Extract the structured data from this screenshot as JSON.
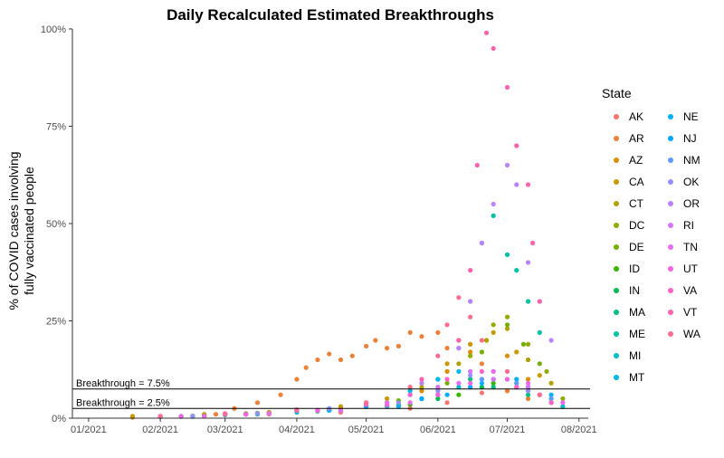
{
  "chart_data": {
    "type": "scatter",
    "title": "Daily Recalculated Estimated Breakthroughs",
    "ylabel_lines": [
      "% of COVID cases involving",
      "fully vaccinated people"
    ],
    "xlabel": "",
    "x_ticks": [
      "01/2021",
      "02/2021",
      "03/2021",
      "04/2021",
      "05/2021",
      "06/2021",
      "07/2021",
      "08/2021"
    ],
    "y_ticks": [
      "0%",
      "25%",
      "50%",
      "75%",
      "100%"
    ],
    "x_range": [
      "2020-12-25",
      "2021-08-05"
    ],
    "ylim": [
      0,
      100
    ],
    "grid": false,
    "legend": {
      "title": "State",
      "position": "right"
    },
    "reference_lines": [
      {
        "label": "Breakthrough = 7.5%",
        "value": 7.5
      },
      {
        "label": "Breakthrough = 2.5%",
        "value": 2.5
      }
    ],
    "series": [
      {
        "name": "AK",
        "color": "#F8766D",
        "points": [
          [
            "2021-01-20",
            0.2
          ],
          [
            "2021-02-20",
            0.5
          ],
          [
            "2021-03-20",
            1.0
          ],
          [
            "2021-04-20",
            1.5
          ],
          [
            "2021-05-20",
            2.5
          ],
          [
            "2021-06-05",
            4.0
          ],
          [
            "2021-06-20",
            6.5
          ],
          [
            "2021-07-05",
            8.0
          ],
          [
            "2021-07-20",
            4.0
          ]
        ]
      },
      {
        "name": "AR",
        "color": "#EC8239",
        "points": [
          [
            "2021-02-25",
            1.0
          ],
          [
            "2021-03-05",
            2.5
          ],
          [
            "2021-03-15",
            4.0
          ],
          [
            "2021-03-25",
            6.0
          ],
          [
            "2021-04-01",
            10.0
          ],
          [
            "2021-04-05",
            13.0
          ],
          [
            "2021-04-10",
            15.0
          ],
          [
            "2021-04-15",
            16.5
          ],
          [
            "2021-04-20",
            15.0
          ],
          [
            "2021-04-25",
            16.0
          ],
          [
            "2021-05-01",
            18.5
          ],
          [
            "2021-05-05",
            20.0
          ],
          [
            "2021-05-10",
            18.0
          ],
          [
            "2021-05-15",
            18.5
          ],
          [
            "2021-05-20",
            22.0
          ],
          [
            "2021-05-25",
            21.0
          ],
          [
            "2021-06-01",
            22.0
          ],
          [
            "2021-06-05",
            18.0
          ],
          [
            "2021-06-10",
            20.0
          ],
          [
            "2021-06-15",
            19.0
          ],
          [
            "2021-06-20",
            14.0
          ],
          [
            "2021-06-25",
            10.0
          ],
          [
            "2021-07-01",
            7.0
          ],
          [
            "2021-07-10",
            5.0
          ]
        ]
      },
      {
        "name": "AZ",
        "color": "#DB8E00",
        "points": [
          [
            "2021-01-20",
            0.3
          ],
          [
            "2021-02-20",
            0.8
          ],
          [
            "2021-03-20",
            1.5
          ],
          [
            "2021-04-20",
            2.5
          ],
          [
            "2021-05-10",
            4.0
          ],
          [
            "2021-05-25",
            7.0
          ],
          [
            "2021-06-05",
            12.0
          ],
          [
            "2021-06-15",
            17.0
          ],
          [
            "2021-06-22",
            20.0
          ],
          [
            "2021-07-01",
            16.0
          ],
          [
            "2021-07-10",
            10.0
          ]
        ]
      },
      {
        "name": "CA",
        "color": "#C79800",
        "points": [
          [
            "2021-01-20",
            0.5
          ],
          [
            "2021-02-20",
            1.0
          ],
          [
            "2021-03-20",
            1.5
          ],
          [
            "2021-04-20",
            3.0
          ],
          [
            "2021-05-10",
            5.0
          ],
          [
            "2021-05-25",
            9.0
          ],
          [
            "2021-06-05",
            14.0
          ],
          [
            "2021-06-15",
            19.0
          ],
          [
            "2021-06-25",
            22.0
          ],
          [
            "2021-07-05",
            17.0
          ],
          [
            "2021-07-15",
            11.0
          ]
        ]
      },
      {
        "name": "CT",
        "color": "#AFA100",
        "points": [
          [
            "2021-02-01",
            0.4
          ],
          [
            "2021-03-01",
            1.0
          ],
          [
            "2021-04-01",
            2.0
          ],
          [
            "2021-05-01",
            4.0
          ],
          [
            "2021-05-25",
            8.0
          ],
          [
            "2021-06-10",
            14.0
          ],
          [
            "2021-06-22",
            20.0
          ],
          [
            "2021-07-01",
            23.0
          ],
          [
            "2021-07-10",
            15.0
          ],
          [
            "2021-07-20",
            9.0
          ]
        ]
      },
      {
        "name": "DC",
        "color": "#93AA00",
        "points": [
          [
            "2021-02-10",
            0.5
          ],
          [
            "2021-03-10",
            1.2
          ],
          [
            "2021-04-10",
            2.0
          ],
          [
            "2021-05-10",
            4.0
          ],
          [
            "2021-06-01",
            8.0
          ],
          [
            "2021-06-15",
            16.0
          ],
          [
            "2021-06-25",
            24.0
          ],
          [
            "2021-07-01",
            26.0
          ],
          [
            "2021-07-10",
            19.0
          ],
          [
            "2021-07-18",
            12.0
          ],
          [
            "2021-07-25",
            5.0
          ]
        ]
      },
      {
        "name": "DE",
        "color": "#72B000",
        "points": [
          [
            "2021-02-15",
            0.6
          ],
          [
            "2021-03-15",
            1.3
          ],
          [
            "2021-04-15",
            2.2
          ],
          [
            "2021-05-15",
            4.5
          ],
          [
            "2021-06-05",
            9.0
          ],
          [
            "2021-06-20",
            17.0
          ],
          [
            "2021-07-01",
            24.0
          ],
          [
            "2021-07-08",
            19.0
          ],
          [
            "2021-07-15",
            14.0
          ]
        ]
      },
      {
        "name": "ID",
        "color": "#39B600",
        "points": [
          [
            "2021-02-20",
            0.5
          ],
          [
            "2021-03-20",
            1.2
          ],
          [
            "2021-04-20",
            2.0
          ],
          [
            "2021-05-20",
            3.5
          ],
          [
            "2021-06-10",
            6.0
          ],
          [
            "2021-06-25",
            9.0
          ],
          [
            "2021-07-10",
            7.0
          ],
          [
            "2021-07-25",
            3.0
          ]
        ]
      },
      {
        "name": "IN",
        "color": "#00BB4E",
        "points": [
          [
            "2021-02-10",
            0.4
          ],
          [
            "2021-03-10",
            1.0
          ],
          [
            "2021-04-10",
            1.8
          ],
          [
            "2021-05-10",
            3.0
          ],
          [
            "2021-06-01",
            5.0
          ],
          [
            "2021-06-20",
            8.0
          ],
          [
            "2021-07-05",
            9.0
          ],
          [
            "2021-07-20",
            4.0
          ]
        ]
      },
      {
        "name": "MA",
        "color": "#00BF7D",
        "points": [
          [
            "2021-02-15",
            0.4
          ],
          [
            "2021-03-15",
            1.0
          ],
          [
            "2021-04-15",
            2.0
          ],
          [
            "2021-05-15",
            3.5
          ],
          [
            "2021-06-01",
            6.0
          ],
          [
            "2021-06-15",
            10.0
          ],
          [
            "2021-06-25",
            8.0
          ],
          [
            "2021-07-10",
            6.0
          ]
        ]
      },
      {
        "name": "ME",
        "color": "#00C1A3",
        "points": [
          [
            "2021-03-01",
            0.8
          ],
          [
            "2021-04-01",
            1.5
          ],
          [
            "2021-05-01",
            3.0
          ],
          [
            "2021-05-20",
            6.0
          ],
          [
            "2021-06-01",
            10.0
          ],
          [
            "2021-06-10",
            18.0
          ],
          [
            "2021-06-15",
            30.0
          ],
          [
            "2021-06-20",
            45.0
          ],
          [
            "2021-06-25",
            52.0
          ],
          [
            "2021-07-01",
            42.0
          ],
          [
            "2021-07-05",
            38.0
          ],
          [
            "2021-07-10",
            30.0
          ],
          [
            "2021-07-15",
            22.0
          ]
        ]
      },
      {
        "name": "MI",
        "color": "#00BECA",
        "points": [
          [
            "2021-02-01",
            0.4
          ],
          [
            "2021-03-01",
            1.0
          ],
          [
            "2021-04-01",
            2.0
          ],
          [
            "2021-05-01",
            3.0
          ],
          [
            "2021-05-25",
            5.0
          ],
          [
            "2021-06-10",
            8.0
          ],
          [
            "2021-06-25",
            10.0
          ],
          [
            "2021-07-10",
            8.0
          ],
          [
            "2021-07-25",
            3.0
          ]
        ]
      },
      {
        "name": "MT",
        "color": "#00B8E5",
        "points": [
          [
            "2021-03-01",
            1.0
          ],
          [
            "2021-04-01",
            2.0
          ],
          [
            "2021-05-01",
            3.5
          ],
          [
            "2021-05-20",
            7.0
          ],
          [
            "2021-06-01",
            10.0
          ],
          [
            "2021-06-10",
            12.0
          ],
          [
            "2021-06-20",
            10.0
          ],
          [
            "2021-07-05",
            8.0
          ],
          [
            "2021-07-20",
            5.0
          ]
        ]
      },
      {
        "name": "NE",
        "color": "#00B0F6",
        "points": [
          [
            "2021-02-15",
            0.5
          ],
          [
            "2021-03-15",
            1.2
          ],
          [
            "2021-04-15",
            2.0
          ],
          [
            "2021-05-15",
            3.0
          ],
          [
            "2021-06-05",
            6.0
          ],
          [
            "2021-06-20",
            9.0
          ],
          [
            "2021-07-05",
            10.0
          ],
          [
            "2021-07-20",
            6.0
          ]
        ]
      },
      {
        "name": "NJ",
        "color": "#00A5FF",
        "points": [
          [
            "2021-02-01",
            0.4
          ],
          [
            "2021-03-01",
            1.0
          ],
          [
            "2021-04-01",
            1.8
          ],
          [
            "2021-05-01",
            3.0
          ],
          [
            "2021-05-25",
            5.0
          ],
          [
            "2021-06-15",
            8.0
          ],
          [
            "2021-07-01",
            10.0
          ],
          [
            "2021-07-15",
            6.0
          ]
        ]
      },
      {
        "name": "NM",
        "color": "#5E9BFF",
        "points": [
          [
            "2021-02-10",
            0.5
          ],
          [
            "2021-03-10",
            1.0
          ],
          [
            "2021-04-10",
            2.0
          ],
          [
            "2021-05-10",
            3.2
          ],
          [
            "2021-06-01",
            6.0
          ],
          [
            "2021-06-20",
            10.0
          ],
          [
            "2021-07-05",
            9.0
          ],
          [
            "2021-07-20",
            5.0
          ]
        ]
      },
      {
        "name": "OK",
        "color": "#9590FF",
        "points": [
          [
            "2021-02-15",
            0.5
          ],
          [
            "2021-03-15",
            1.2
          ],
          [
            "2021-04-15",
            2.5
          ],
          [
            "2021-05-15",
            4.0
          ],
          [
            "2021-06-01",
            7.0
          ],
          [
            "2021-06-15",
            11.0
          ],
          [
            "2021-06-25",
            12.0
          ],
          [
            "2021-07-10",
            7.0
          ]
        ]
      },
      {
        "name": "OR",
        "color": "#B983FF",
        "points": [
          [
            "2021-02-01",
            0.5
          ],
          [
            "2021-03-01",
            1.0
          ],
          [
            "2021-04-01",
            2.0
          ],
          [
            "2021-05-01",
            4.0
          ],
          [
            "2021-05-25",
            9.0
          ],
          [
            "2021-06-10",
            18.0
          ],
          [
            "2021-06-15",
            30.0
          ],
          [
            "2021-06-20",
            45.0
          ],
          [
            "2021-06-25",
            55.0
          ],
          [
            "2021-07-01",
            65.0
          ],
          [
            "2021-07-05",
            60.0
          ],
          [
            "2021-07-10",
            40.0
          ],
          [
            "2021-07-15",
            30.0
          ],
          [
            "2021-07-20",
            20.0
          ]
        ]
      },
      {
        "name": "RI",
        "color": "#D575FE",
        "points": [
          [
            "2021-02-10",
            0.5
          ],
          [
            "2021-03-10",
            1.0
          ],
          [
            "2021-04-10",
            2.0
          ],
          [
            "2021-05-10",
            4.0
          ],
          [
            "2021-06-01",
            8.0
          ],
          [
            "2021-06-15",
            12.0
          ],
          [
            "2021-06-25",
            10.0
          ],
          [
            "2021-07-10",
            8.0
          ]
        ]
      },
      {
        "name": "TN",
        "color": "#E76BF3",
        "points": [
          [
            "2021-02-20",
            0.5
          ],
          [
            "2021-03-20",
            1.2
          ],
          [
            "2021-04-20",
            2.0
          ],
          [
            "2021-05-20",
            4.0
          ],
          [
            "2021-06-10",
            9.0
          ],
          [
            "2021-06-25",
            12.0
          ],
          [
            "2021-07-10",
            9.0
          ],
          [
            "2021-07-25",
            4.0
          ]
        ]
      },
      {
        "name": "UT",
        "color": "#F763E0",
        "points": [
          [
            "2021-02-10",
            0.4
          ],
          [
            "2021-03-10",
            1.0
          ],
          [
            "2021-04-10",
            2.0
          ],
          [
            "2021-05-10",
            3.5
          ],
          [
            "2021-06-01",
            6.0
          ],
          [
            "2021-06-15",
            9.0
          ],
          [
            "2021-07-01",
            10.0
          ],
          [
            "2021-07-15",
            6.0
          ]
        ]
      },
      {
        "name": "VA",
        "color": "#FF61C9",
        "points": [
          [
            "2021-02-01",
            0.4
          ],
          [
            "2021-03-01",
            1.0
          ],
          [
            "2021-04-01",
            2.0
          ],
          [
            "2021-05-01",
            3.5
          ],
          [
            "2021-05-20",
            6.0
          ],
          [
            "2021-06-05",
            10.0
          ],
          [
            "2021-06-20",
            12.0
          ],
          [
            "2021-07-05",
            8.0
          ],
          [
            "2021-07-20",
            4.0
          ]
        ]
      },
      {
        "name": "VT",
        "color": "#FF62AD",
        "points": [
          [
            "2021-02-01",
            0.5
          ],
          [
            "2021-03-01",
            1.0
          ],
          [
            "2021-04-01",
            2.0
          ],
          [
            "2021-05-01",
            4.0
          ],
          [
            "2021-05-25",
            10.0
          ],
          [
            "2021-06-10",
            20.0
          ],
          [
            "2021-06-15",
            38.0
          ],
          [
            "2021-06-18",
            65.0
          ],
          [
            "2021-06-22",
            99.0
          ],
          [
            "2021-06-25",
            95.0
          ],
          [
            "2021-07-01",
            85.0
          ],
          [
            "2021-07-05",
            70.0
          ],
          [
            "2021-07-10",
            60.0
          ],
          [
            "2021-07-12",
            45.0
          ],
          [
            "2021-07-15",
            30.0
          ]
        ]
      },
      {
        "name": "WA",
        "color": "#FF6C91",
        "points": [
          [
            "2021-02-01",
            0.5
          ],
          [
            "2021-03-01",
            1.2
          ],
          [
            "2021-04-01",
            2.2
          ],
          [
            "2021-05-01",
            4.0
          ],
          [
            "2021-05-20",
            8.0
          ],
          [
            "2021-06-01",
            16.0
          ],
          [
            "2021-06-05",
            24.0
          ],
          [
            "2021-06-10",
            31.0
          ],
          [
            "2021-06-15",
            26.0
          ],
          [
            "2021-06-20",
            20.0
          ],
          [
            "2021-07-01",
            12.0
          ],
          [
            "2021-07-15",
            6.0
          ]
        ]
      }
    ]
  }
}
